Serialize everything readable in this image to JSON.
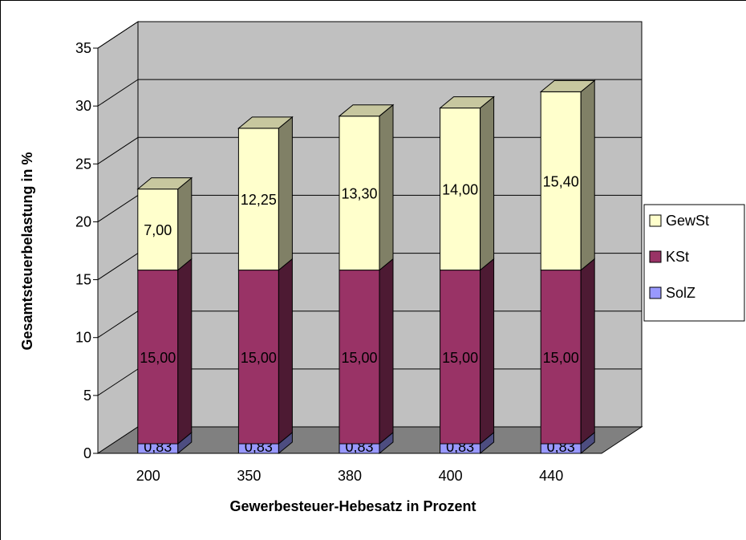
{
  "chart_data": {
    "type": "bar",
    "stacked": true,
    "three_d": true,
    "categories": [
      "200",
      "350",
      "380",
      "400",
      "440"
    ],
    "series": [
      {
        "name": "SolZ",
        "values": [
          0.83,
          0.83,
          0.83,
          0.83,
          0.83
        ],
        "labels": [
          "0,83",
          "0,83",
          "0,83",
          "0,83",
          "0,83"
        ],
        "color": "#9999ff"
      },
      {
        "name": "KSt",
        "values": [
          15.0,
          15.0,
          15.0,
          15.0,
          15.0
        ],
        "labels": [
          "15,00",
          "15,00",
          "15,00",
          "15,00",
          "15,00"
        ],
        "color": "#993366"
      },
      {
        "name": "GewSt",
        "values": [
          7.0,
          12.25,
          13.3,
          14.0,
          15.4
        ],
        "labels": [
          "7,00",
          "12,25",
          "13,30",
          "14,00",
          "15,40"
        ],
        "color": "#ffffcc"
      }
    ],
    "xlabel": "Gewerbesteuer-Hebesatz in Prozent",
    "ylabel": "Gesamtsteuerbelastung in %",
    "ylim": [
      0,
      35
    ],
    "yticks": [
      "0",
      "5",
      "10",
      "15",
      "20",
      "25",
      "30",
      "35"
    ],
    "grid": true,
    "legend_position": "right",
    "legend_order": [
      "GewSt",
      "KSt",
      "SolZ"
    ],
    "wall_color": "#c0c0c0",
    "floor_color": "#808080"
  }
}
